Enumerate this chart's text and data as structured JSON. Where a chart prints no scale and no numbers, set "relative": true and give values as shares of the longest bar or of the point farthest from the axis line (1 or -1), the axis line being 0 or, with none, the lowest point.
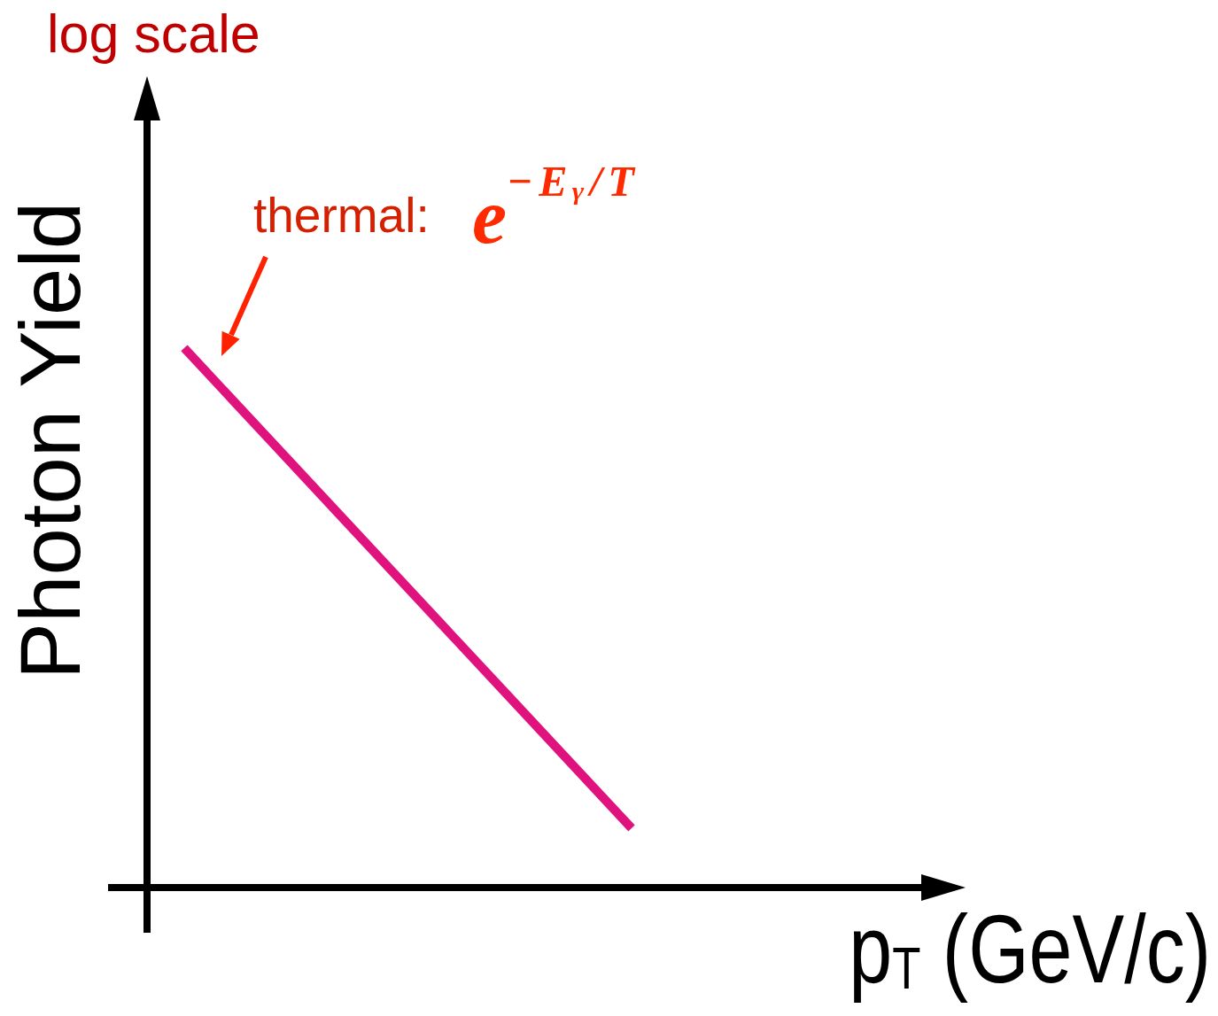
{
  "chart_data": {
    "type": "line",
    "relative": true,
    "xlabel": "p$_{T}$ (GeV/c)",
    "ylabel": "Photon Yield",
    "annotations": [
      "log scale",
      "thermal:",
      "e$^{−Eᵧ/T}$"
    ],
    "categories": [
      null,
      null
    ],
    "series": [
      {
        "color": "#e0127e",
        "values": [
          1,
          0.11
        ]
      }
    ]
  }
}
